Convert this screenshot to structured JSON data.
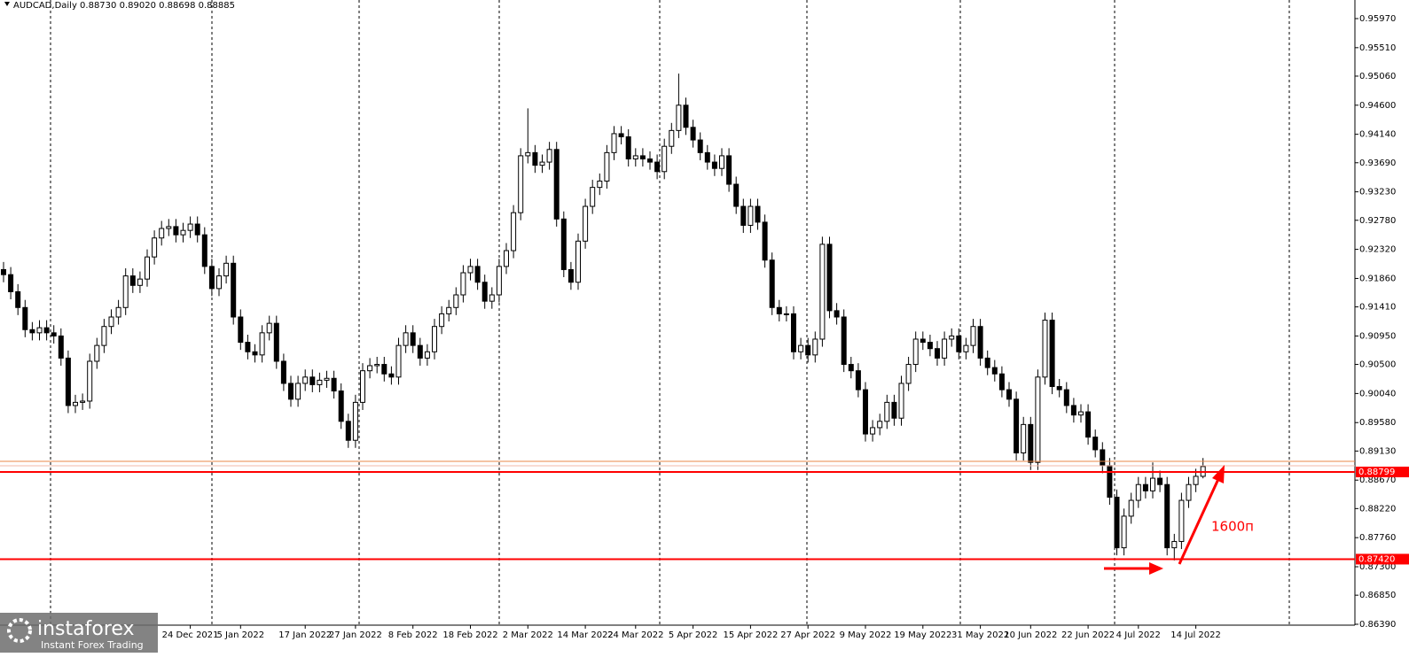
{
  "chart_data": {
    "type": "candlestick",
    "title": "AUDCAD,Daily  0.88730 0.89020 0.88698 0.88885",
    "annotation": "1600п",
    "up_color": "#ffffff",
    "down_color": "#000000",
    "categories": [
      null,
      null,
      null,
      null,
      null,
      null,
      null,
      null,
      null,
      null,
      null,
      null,
      null,
      null,
      null,
      null,
      null,
      null,
      null,
      null,
      null,
      null,
      null,
      null,
      null,
      null,
      "24 Dec 2021",
      null,
      null,
      null,
      null,
      null,
      null,
      "5 Jan 2022",
      null,
      null,
      null,
      null,
      null,
      null,
      null,
      null,
      "17 Jan 2022",
      null,
      null,
      null,
      null,
      null,
      null,
      "27 Jan 2022",
      null,
      null,
      null,
      null,
      null,
      null,
      null,
      "8 Feb 2022",
      null,
      null,
      null,
      null,
      null,
      null,
      null,
      "18 Feb 2022",
      null,
      null,
      null,
      null,
      null,
      null,
      null,
      "2 Mar 2022",
      null,
      null,
      null,
      null,
      null,
      null,
      null,
      "14 Mar 2022",
      null,
      null,
      null,
      null,
      null,
      null,
      "24 Mar 2022",
      null,
      null,
      null,
      null,
      null,
      null,
      null,
      "5 Apr 2022",
      null,
      null,
      null,
      null,
      null,
      null,
      null,
      "15 Apr 2022",
      null,
      null,
      null,
      null,
      null,
      null,
      null,
      "27 Apr 2022",
      null,
      null,
      null,
      null,
      null,
      null,
      null,
      "9 May 2022",
      null,
      null,
      null,
      null,
      null,
      null,
      null,
      "19 May 2022",
      null,
      null,
      null,
      null,
      null,
      null,
      null,
      "31 May 2022",
      null,
      null,
      null,
      null,
      null,
      null,
      "10 Jun 2022",
      null,
      null,
      null,
      null,
      null,
      null,
      null,
      "22 Jun 2022",
      null,
      null,
      null,
      null,
      null,
      null,
      "4 Jul 2022",
      null,
      null,
      null,
      null,
      null,
      null,
      null,
      "14 Jul 2022",
      null
    ],
    "open": [
      0.92,
      0.9192,
      0.9165,
      0.914,
      0.9105,
      0.91,
      0.9108,
      0.91,
      0.9095,
      0.906,
      0.8985,
      0.899,
      0.8992,
      0.9055,
      0.908,
      0.911,
      0.9125,
      0.914,
      0.919,
      0.9175,
      0.9185,
      0.922,
      0.925,
      0.9265,
      0.9268,
      0.9255,
      0.9262,
      0.9272,
      0.9255,
      0.9205,
      0.917,
      0.919,
      0.921,
      0.9125,
      0.9085,
      0.907,
      0.9065,
      0.91,
      0.9115,
      0.9055,
      0.902,
      0.8995,
      0.902,
      0.903,
      0.9018,
      0.9025,
      0.9028,
      0.9008,
      0.896,
      0.893,
      0.899,
      0.904,
      0.9048,
      0.905,
      0.9035,
      0.903,
      0.908,
      0.91,
      0.908,
      0.906,
      0.907,
      0.911,
      0.913,
      0.914,
      0.916,
      0.9195,
      0.9205,
      0.918,
      0.915,
      0.916,
      0.9205,
      0.923,
      0.929,
      0.938,
      0.9385,
      0.9365,
      0.937,
      0.939,
      0.928,
      0.92,
      0.918,
      0.9245,
      0.93,
      0.933,
      0.934,
      0.9385,
      0.9415,
      0.941,
      0.9375,
      0.938,
      0.9375,
      0.937,
      0.9355,
      0.9395,
      0.942,
      0.946,
      0.9425,
      0.9405,
      0.9385,
      0.937,
      0.936,
      0.938,
      0.9335,
      0.93,
      0.927,
      0.93,
      0.9275,
      0.9215,
      0.914,
      0.913,
      0.913,
      0.907,
      0.908,
      0.9065,
      0.909,
      0.924,
      0.9135,
      0.9125,
      0.905,
      0.904,
      0.901,
      0.894,
      0.895,
      0.896,
      0.899,
      0.8965,
      0.902,
      0.905,
      0.909,
      0.9085,
      0.9075,
      0.906,
      0.909,
      0.9095,
      0.907,
      0.908,
      0.911,
      0.906,
      0.9045,
      0.9035,
      0.901,
      0.8995,
      0.891,
      0.8955,
      0.8895,
      0.903,
      0.912,
      0.9015,
      0.901,
      0.8985,
      0.897,
      0.8975,
      0.8935,
      0.8915,
      0.889,
      0.884,
      0.876,
      0.881,
      0.8835,
      0.886,
      0.885,
      0.887,
      0.886,
      0.876,
      0.877,
      0.8835,
      0.886,
      0.8873
    ],
    "high": [
      0.9212,
      0.9204,
      0.9177,
      0.9152,
      0.9117,
      0.912,
      0.912,
      0.9112,
      0.9107,
      0.9072,
      0.9002,
      0.9004,
      0.9067,
      0.9092,
      0.9122,
      0.9137,
      0.9152,
      0.9202,
      0.9202,
      0.9197,
      0.9232,
      0.9262,
      0.9277,
      0.928,
      0.928,
      0.9274,
      0.9284,
      0.9284,
      0.9267,
      0.9217,
      0.9202,
      0.9222,
      0.9222,
      0.9137,
      0.9097,
      0.9082,
      0.9112,
      0.9127,
      0.9127,
      0.9067,
      0.9032,
      0.9032,
      0.9042,
      0.9042,
      0.9037,
      0.904,
      0.904,
      0.902,
      0.8972,
      0.9002,
      0.9052,
      0.906,
      0.9062,
      0.9062,
      0.9047,
      0.9092,
      0.9112,
      0.9112,
      0.9092,
      0.9082,
      0.9122,
      0.9142,
      0.9152,
      0.9172,
      0.9207,
      0.9217,
      0.9217,
      0.9192,
      0.9172,
      0.9217,
      0.9242,
      0.9302,
      0.9392,
      0.9455,
      0.9397,
      0.9382,
      0.9402,
      0.9402,
      0.9292,
      0.9212,
      0.9257,
      0.9312,
      0.9342,
      0.9352,
      0.9397,
      0.9427,
      0.9427,
      0.9422,
      0.9392,
      0.9392,
      0.9387,
      0.9382,
      0.9407,
      0.9432,
      0.951,
      0.9472,
      0.9437,
      0.9417,
      0.9397,
      0.9382,
      0.9392,
      0.9392,
      0.9347,
      0.9312,
      0.9312,
      0.9312,
      0.9287,
      0.9227,
      0.9152,
      0.9142,
      0.9142,
      0.9092,
      0.9092,
      0.9102,
      0.9252,
      0.9252,
      0.9147,
      0.9137,
      0.9062,
      0.9052,
      0.9022,
      0.8962,
      0.8972,
      0.9002,
      0.9002,
      0.9032,
      0.9062,
      0.9102,
      0.9102,
      0.9097,
      0.9087,
      0.9102,
      0.9107,
      0.9107,
      0.9092,
      0.9122,
      0.9122,
      0.9072,
      0.9057,
      0.9047,
      0.9022,
      0.9007,
      0.8967,
      0.8967,
      0.9042,
      0.9132,
      0.9132,
      0.9027,
      0.9022,
      0.8997,
      0.8987,
      0.8987,
      0.8947,
      0.8927,
      0.8902,
      0.8852,
      0.8822,
      0.8847,
      0.8872,
      0.8872,
      0.8895,
      0.8882,
      0.8872,
      0.8782,
      0.8847,
      0.8872,
      0.8885,
      0.8902
    ],
    "low": [
      0.918,
      0.9153,
      0.9128,
      0.9093,
      0.9088,
      0.9088,
      0.9088,
      0.9083,
      0.9048,
      0.8973,
      0.8973,
      0.8978,
      0.898,
      0.9043,
      0.9068,
      0.9098,
      0.9113,
      0.9128,
      0.9163,
      0.9163,
      0.9173,
      0.9208,
      0.9238,
      0.9253,
      0.9243,
      0.9243,
      0.925,
      0.9243,
      0.9193,
      0.9158,
      0.9158,
      0.9178,
      0.9113,
      0.9073,
      0.9058,
      0.9053,
      0.9053,
      0.9088,
      0.9043,
      0.9008,
      0.8983,
      0.8983,
      0.9008,
      0.9006,
      0.9006,
      0.9013,
      0.8996,
      0.8948,
      0.8918,
      0.8918,
      0.8978,
      0.9028,
      0.9036,
      0.9023,
      0.9018,
      0.9018,
      0.9068,
      0.9068,
      0.9048,
      0.9048,
      0.9058,
      0.9098,
      0.9118,
      0.9128,
      0.9148,
      0.9183,
      0.9168,
      0.9138,
      0.9138,
      0.9148,
      0.9193,
      0.9218,
      0.9278,
      0.9368,
      0.9353,
      0.9353,
      0.9358,
      0.9268,
      0.9188,
      0.9168,
      0.9168,
      0.9233,
      0.9288,
      0.9318,
      0.9328,
      0.9373,
      0.9398,
      0.9363,
      0.9363,
      0.9363,
      0.9358,
      0.9343,
      0.9343,
      0.9383,
      0.9408,
      0.9413,
      0.9393,
      0.9373,
      0.9358,
      0.9348,
      0.9348,
      0.9323,
      0.9288,
      0.9258,
      0.9258,
      0.9263,
      0.9203,
      0.9128,
      0.9118,
      0.9118,
      0.9058,
      0.9058,
      0.9053,
      0.9053,
      0.9078,
      0.9123,
      0.9113,
      0.9038,
      0.9028,
      0.8998,
      0.8928,
      0.8928,
      0.8938,
      0.8948,
      0.8953,
      0.8953,
      0.9008,
      0.9038,
      0.9073,
      0.9063,
      0.9048,
      0.9048,
      0.9078,
      0.9058,
      0.9058,
      0.9068,
      0.9048,
      0.9033,
      0.9023,
      0.8998,
      0.8983,
      0.8898,
      0.8898,
      0.8883,
      0.8883,
      0.9018,
      0.9003,
      0.8998,
      0.8973,
      0.8958,
      0.8958,
      0.8923,
      0.8903,
      0.8878,
      0.8828,
      0.8748,
      0.8748,
      0.8798,
      0.8823,
      0.8838,
      0.8838,
      0.8848,
      0.8748,
      0.874,
      0.8758,
      0.8823,
      0.8848,
      0.88698
    ],
    "close": [
      0.9192,
      0.9165,
      0.914,
      0.9105,
      0.91,
      0.9108,
      0.91,
      0.9095,
      0.906,
      0.8985,
      0.899,
      0.8992,
      0.9055,
      0.908,
      0.911,
      0.9125,
      0.914,
      0.919,
      0.9175,
      0.9185,
      0.922,
      0.925,
      0.9265,
      0.9268,
      0.9255,
      0.9262,
      0.9272,
      0.9255,
      0.9205,
      0.917,
      0.919,
      0.921,
      0.9125,
      0.9085,
      0.907,
      0.9065,
      0.91,
      0.9115,
      0.9055,
      0.902,
      0.8995,
      0.902,
      0.903,
      0.9018,
      0.9025,
      0.9028,
      0.9008,
      0.896,
      0.893,
      0.899,
      0.904,
      0.9048,
      0.905,
      0.9035,
      0.903,
      0.908,
      0.91,
      0.908,
      0.906,
      0.907,
      0.911,
      0.913,
      0.914,
      0.916,
      0.9195,
      0.9205,
      0.918,
      0.915,
      0.916,
      0.9205,
      0.923,
      0.929,
      0.938,
      0.9385,
      0.9365,
      0.937,
      0.939,
      0.928,
      0.92,
      0.918,
      0.9245,
      0.93,
      0.933,
      0.934,
      0.9385,
      0.9415,
      0.941,
      0.9375,
      0.938,
      0.9375,
      0.937,
      0.9355,
      0.9395,
      0.942,
      0.946,
      0.9425,
      0.9405,
      0.9385,
      0.937,
      0.936,
      0.938,
      0.9335,
      0.93,
      0.927,
      0.93,
      0.9275,
      0.9215,
      0.914,
      0.913,
      0.913,
      0.907,
      0.908,
      0.9065,
      0.909,
      0.924,
      0.9135,
      0.9125,
      0.905,
      0.904,
      0.901,
      0.894,
      0.895,
      0.896,
      0.899,
      0.8965,
      0.902,
      0.905,
      0.909,
      0.9085,
      0.9075,
      0.906,
      0.909,
      0.9095,
      0.907,
      0.908,
      0.911,
      0.906,
      0.9045,
      0.9035,
      0.901,
      0.8995,
      0.891,
      0.8955,
      0.8895,
      0.903,
      0.912,
      0.9015,
      0.901,
      0.8985,
      0.897,
      0.8975,
      0.8935,
      0.8915,
      0.889,
      0.884,
      0.876,
      0.881,
      0.8835,
      0.886,
      0.885,
      0.887,
      0.886,
      0.876,
      0.877,
      0.8835,
      0.886,
      0.8873,
      0.88885
    ],
    "ylim": [
      0.86376,
      0.96264
    ],
    "yticks": [
      {
        "value": 0.9597,
        "label": "0.95970"
      },
      {
        "value": 0.9551,
        "label": "0.95510"
      },
      {
        "value": 0.9506,
        "label": "0.95060"
      },
      {
        "value": 0.946,
        "label": "0.94600"
      },
      {
        "value": 0.9414,
        "label": "0.94140"
      },
      {
        "value": 0.9369,
        "label": "0.93690"
      },
      {
        "value": 0.9323,
        "label": "0.93230"
      },
      {
        "value": 0.9278,
        "label": "0.92780"
      },
      {
        "value": 0.9232,
        "label": "0.92320"
      },
      {
        "value": 0.9186,
        "label": "0.91860"
      },
      {
        "value": 0.9141,
        "label": "0.91410"
      },
      {
        "value": 0.9095,
        "label": "0.90950"
      },
      {
        "value": 0.905,
        "label": "0.90500"
      },
      {
        "value": 0.9004,
        "label": "0.90040"
      },
      {
        "value": 0.8958,
        "label": "0.89580"
      },
      {
        "value": 0.8913,
        "label": "0.89130"
      },
      {
        "value": 0.8867,
        "label": "0.88670"
      },
      {
        "value": 0.8822,
        "label": "0.88220"
      },
      {
        "value": 0.8776,
        "label": "0.87760"
      },
      {
        "value": 0.873,
        "label": "0.87300"
      },
      {
        "value": 0.8685,
        "label": "0.86850"
      },
      {
        "value": 0.8639,
        "label": "0.86390"
      }
    ],
    "levels": [
      {
        "value": 0.88967,
        "color": "#e8874a"
      },
      {
        "value": 0.88897,
        "color": "#f2b8a8"
      },
      {
        "value": 0.88799,
        "color": "#ff0000",
        "label": "0.88799"
      },
      {
        "value": 0.8742,
        "color": "#ff0000",
        "label": "0.87420"
      }
    ]
  },
  "watermark": {
    "name": "instaforex",
    "tagline": "Instant Forex Trading"
  }
}
